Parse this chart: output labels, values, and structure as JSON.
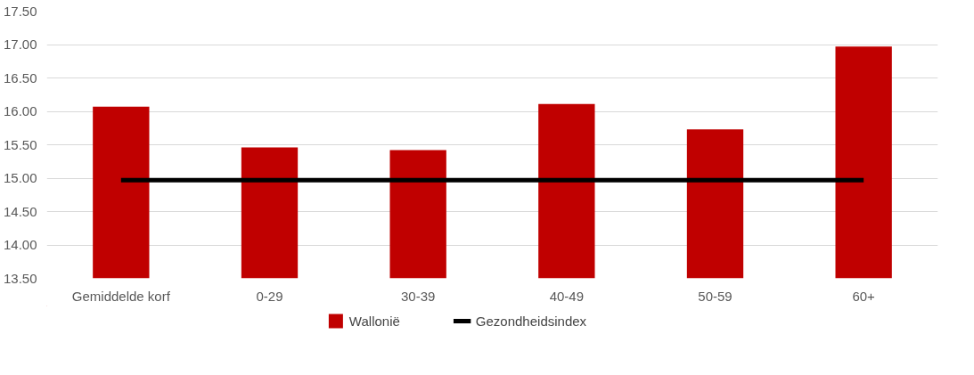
{
  "chart_data": {
    "type": "bar",
    "categories": [
      "Gemiddelde korf",
      "0-29",
      "30-39",
      "40-49",
      "50-59",
      "60+"
    ],
    "series": [
      {
        "name": "Wallonië",
        "color": "#c00000",
        "values": [
          16.07,
          15.46,
          15.42,
          16.11,
          15.73,
          16.97
        ]
      },
      {
        "name": "Gezondheidsindex",
        "type": "line",
        "color": "#000000",
        "values": [
          14.97,
          14.97,
          14.97,
          14.97,
          14.97,
          14.97
        ]
      }
    ],
    "ylim": [
      13.5,
      17.5
    ],
    "yticks": [
      {
        "value": 13.5,
        "label": "13.50"
      },
      {
        "value": 14.0,
        "label": "14.00"
      },
      {
        "value": 14.5,
        "label": "14.50"
      },
      {
        "value": 15.0,
        "label": "15.00"
      },
      {
        "value": 15.5,
        "label": "15.50"
      },
      {
        "value": 16.0,
        "label": "16.00"
      },
      {
        "value": 16.5,
        "label": "16.50"
      },
      {
        "value": 17.0,
        "label": "17.00"
      },
      {
        "value": 17.5,
        "label": "17.50"
      }
    ],
    "grid": "y",
    "legend": "bottom"
  }
}
